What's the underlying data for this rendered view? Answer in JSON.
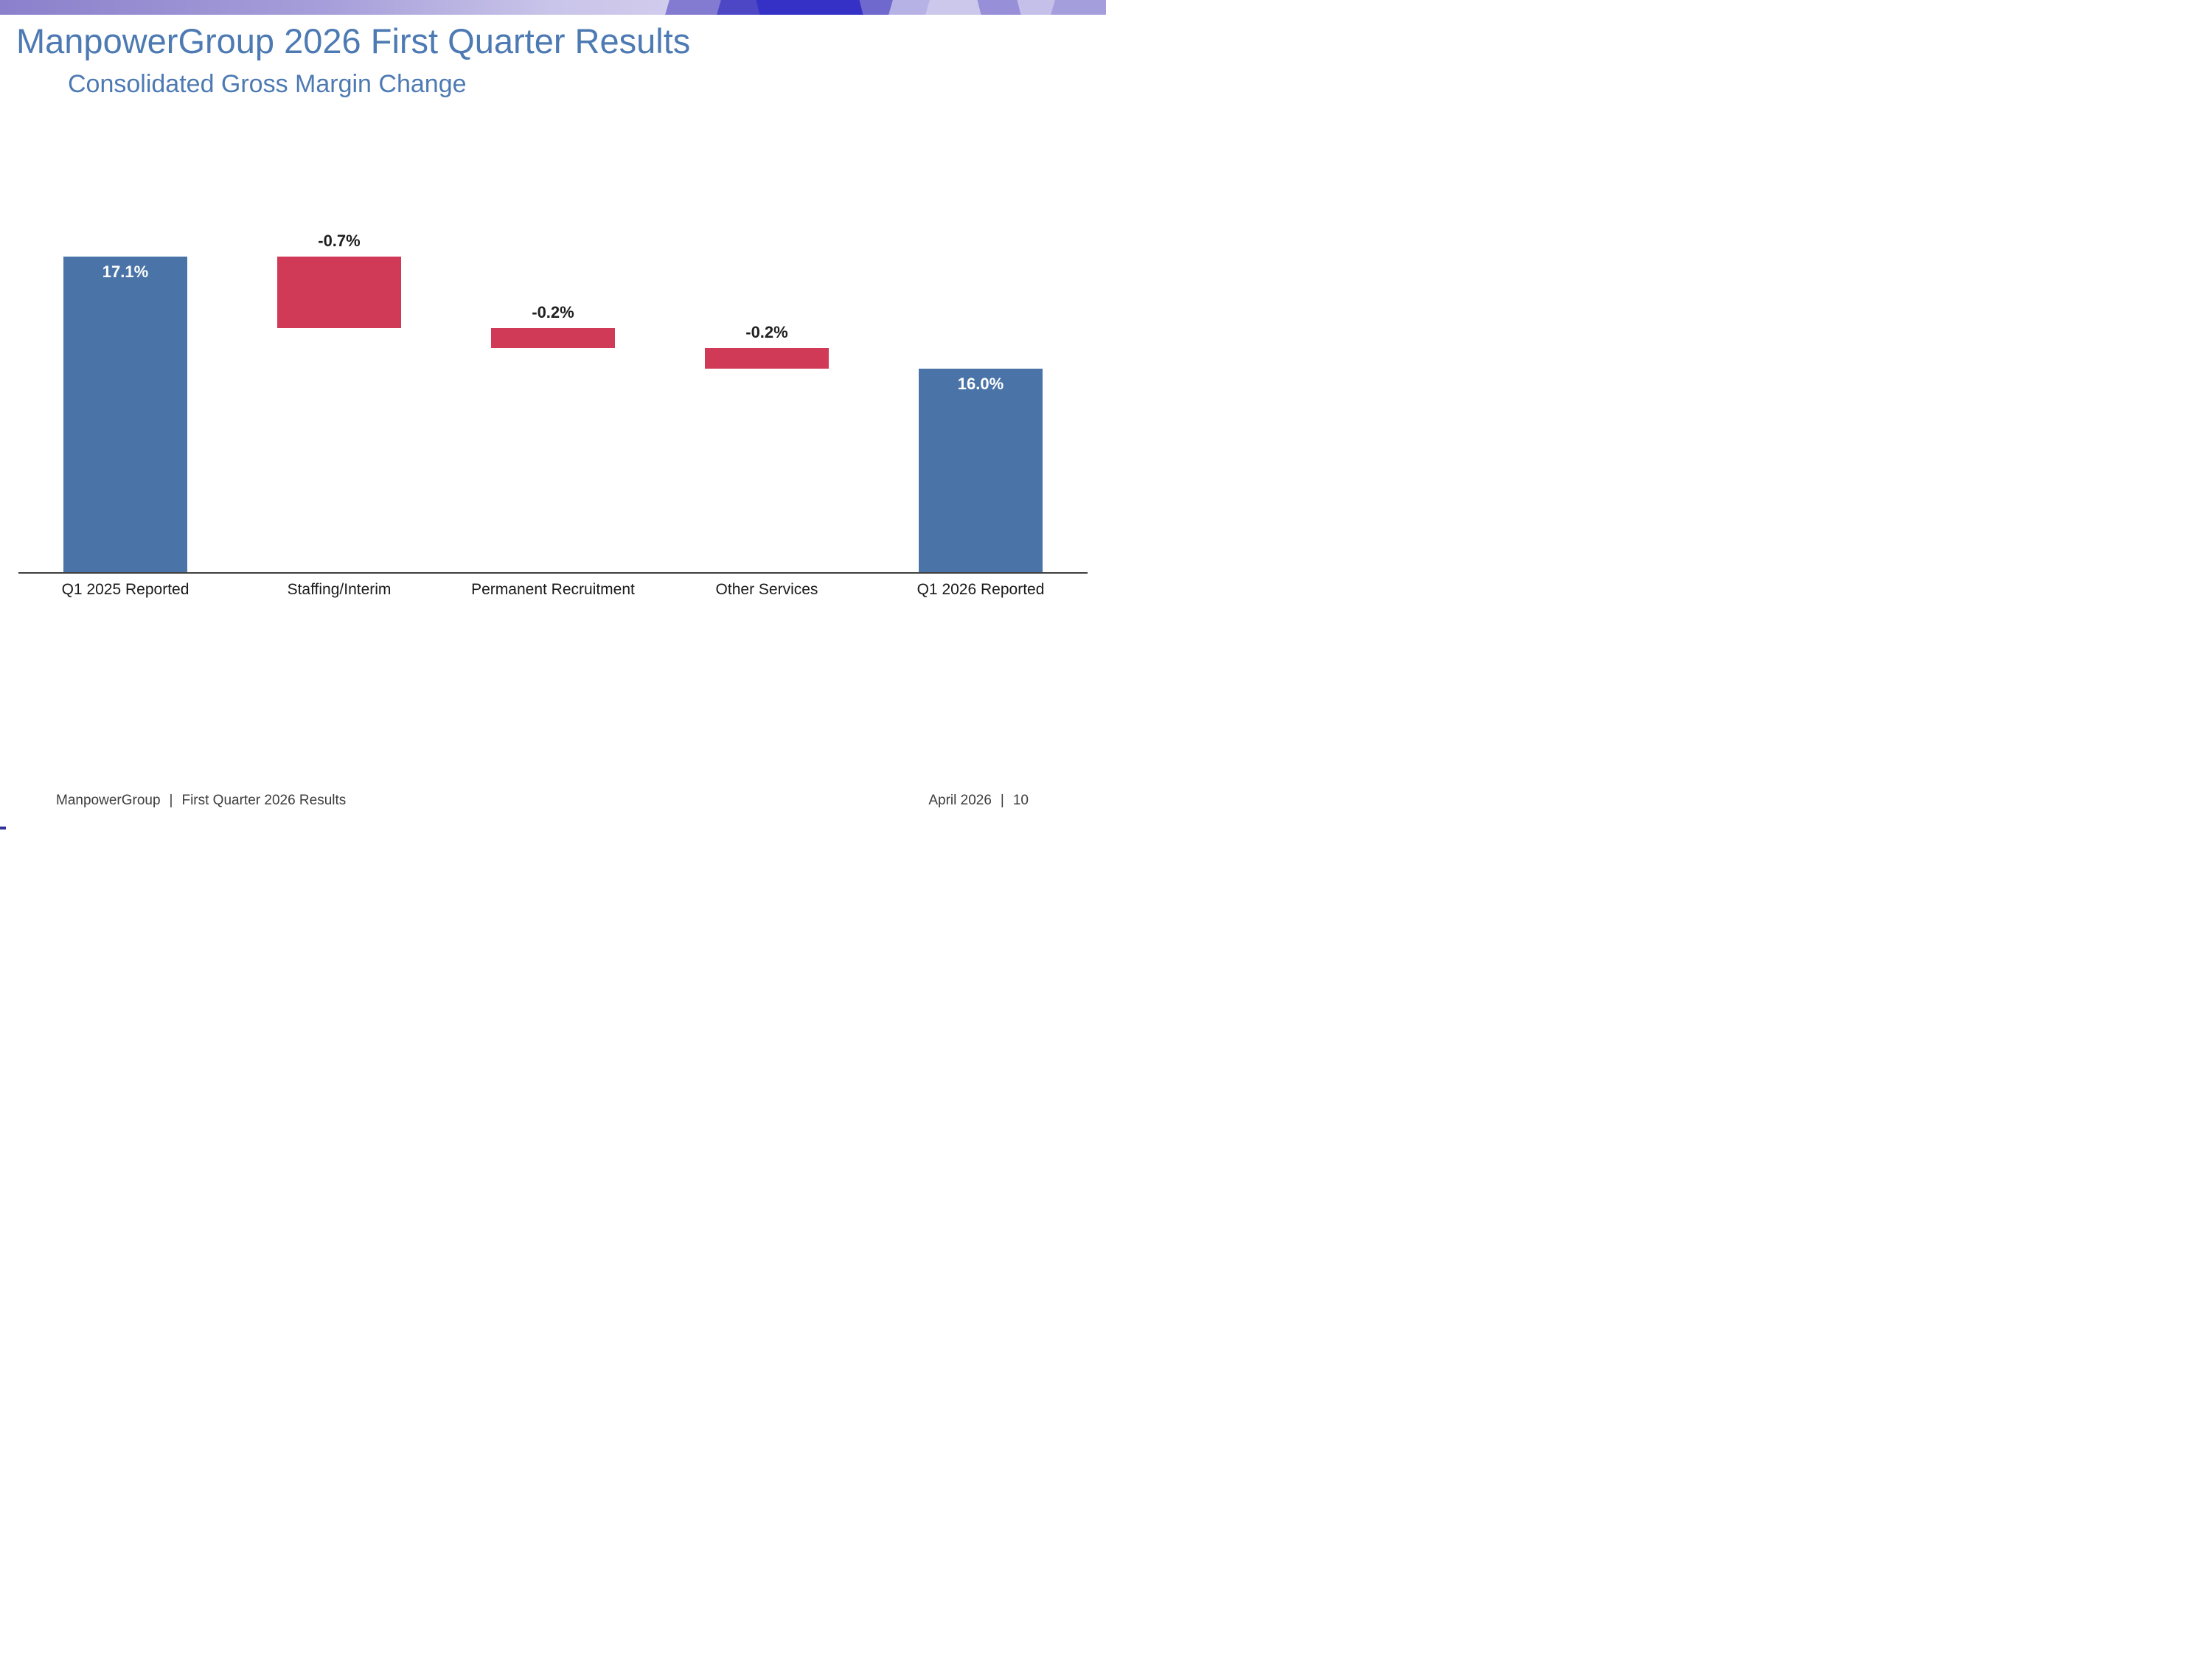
{
  "slide": {
    "title": "ManpowerGroup 2026 First Quarter Results",
    "subtitle": "Consolidated Gross Margin Change"
  },
  "footer": {
    "left_brand": "ManpowerGroup",
    "left_divider": "|",
    "left_title": "First Quarter 2026 Results",
    "right_date": "April 2026",
    "right_divider": "|",
    "right_page": "10"
  },
  "theme": {
    "title_color": "#4d7ab3",
    "band_purple": "#8a80cc",
    "band_blue": "#3531c6",
    "corner_mark_color": "#32329b"
  },
  "chart_data": {
    "type": "bar",
    "subtype": "waterfall",
    "title": "",
    "xlabel": "",
    "ylabel": "",
    "categories": [
      "Q1 2025 Reported",
      "Staffing/Interim",
      "Permanent Recruitment",
      "Other Services",
      "Q1 2026 Reported"
    ],
    "series": [
      {
        "category": "Q1 2025 Reported",
        "value": 17.1,
        "kind": "total",
        "label": "17.1%"
      },
      {
        "category": "Staffing/Interim",
        "value": -0.7,
        "kind": "delta",
        "label": "-0.7%"
      },
      {
        "category": "Permanent Recruitment",
        "value": -0.2,
        "kind": "delta",
        "label": "-0.2%"
      },
      {
        "category": "Other Services",
        "value": -0.2,
        "kind": "delta",
        "label": "-0.2%"
      },
      {
        "category": "Q1 2026 Reported",
        "value": 16.0,
        "kind": "total",
        "label": "16.0%"
      }
    ],
    "ylim": [
      14,
      17.45
    ],
    "grid": false,
    "legend": false,
    "colors": {
      "total": "#4a74a8",
      "delta_negative": "#d13a57",
      "delta_positive": "#4a74a8"
    },
    "label_colors": {
      "total": "#ffffff",
      "delta": "#1f1f1f"
    },
    "axis_line_color": "#3f3f3f"
  }
}
